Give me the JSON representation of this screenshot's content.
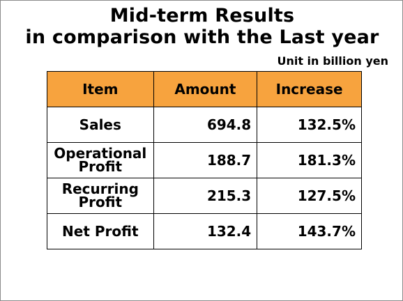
{
  "title": {
    "line1": "Mid-term Results",
    "line2": "in comparison with the Last year"
  },
  "unit_note": "Unit in billion yen",
  "table": {
    "headers": [
      "Item",
      "Amount",
      "Increase"
    ],
    "rows": [
      {
        "item": [
          "Sales"
        ],
        "amount": "694.8",
        "increase": "132.5%"
      },
      {
        "item": [
          "Operational",
          "Profit"
        ],
        "amount": "188.7",
        "increase": "181.3%"
      },
      {
        "item": [
          "Recurring",
          "Profit"
        ],
        "amount": "215.3",
        "increase": "127.5%"
      },
      {
        "item": [
          "Net Profit"
        ],
        "amount": "132.4",
        "increase": "143.7%"
      }
    ]
  },
  "colors": {
    "header_fill": "#f7a33e",
    "border": "#000000",
    "background": "#ffffff"
  }
}
